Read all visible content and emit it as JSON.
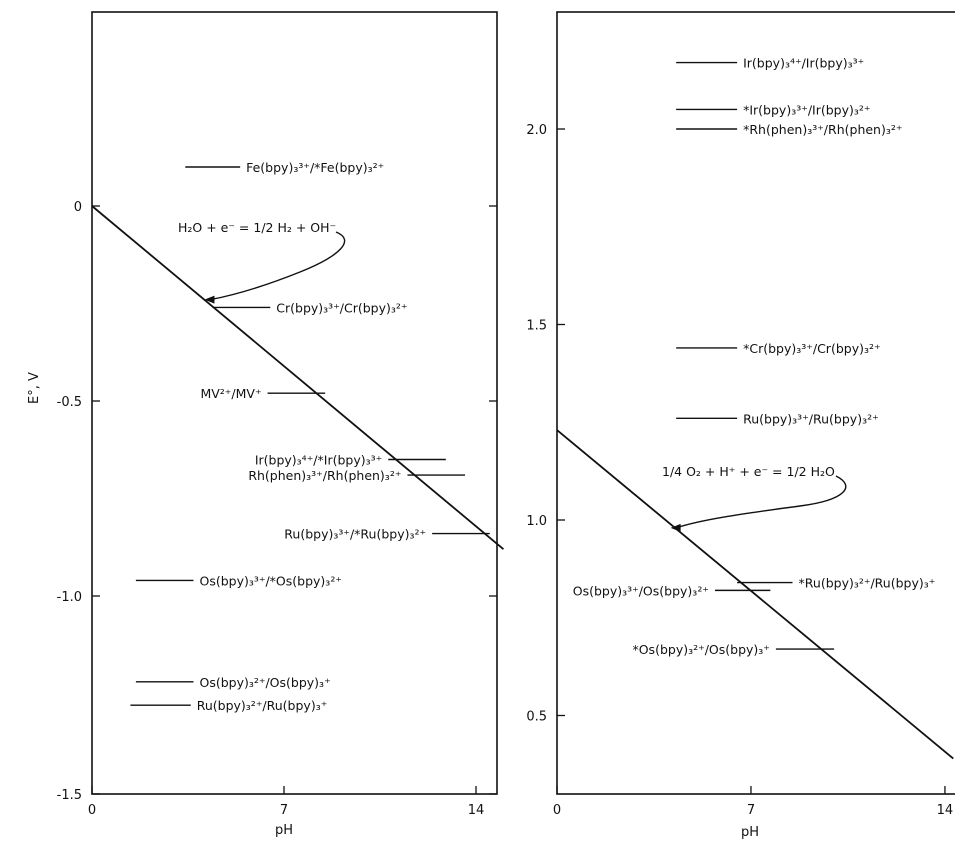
{
  "chart_data": [
    {
      "type": "line",
      "panel": "left",
      "xlabel": "pH",
      "ylabel": "E°, V",
      "xlim": [
        0,
        15
      ],
      "ylim": [
        -1.5,
        0.5
      ],
      "y_inverted": true,
      "grid": false,
      "x_ticks": [
        0,
        7,
        14
      ],
      "x_tick_labels": [
        "0",
        "7",
        "14"
      ],
      "y_ticks": [
        0,
        -0.5,
        -1.0,
        -1.5
      ],
      "y_tick_labels": [
        "0",
        "-0.5",
        "-1.0",
        "-1.5"
      ],
      "reference_line": {
        "x": [
          0,
          15
        ],
        "y": [
          0,
          -0.88
        ]
      },
      "reference_annotation": {
        "label": "H₂O + e⁻ = 1/2 H₂ + OH⁻",
        "points_to": {
          "x": 4.1,
          "y": -0.24
        }
      },
      "couples": [
        {
          "label": "Fe(bpy)₃³⁺/*Fe(bpy)₃²⁺",
          "E": 0.1,
          "x_start": 3.4,
          "x_end": 5.4,
          "label_side": "right"
        },
        {
          "label": "Cr(bpy)₃³⁺/Cr(bpy)₃²⁺",
          "E": -0.26,
          "x_start": 4.4,
          "x_end": 6.5,
          "label_side": "right"
        },
        {
          "label": "MV²⁺/MV⁺",
          "E": -0.48,
          "x_start": 6.4,
          "x_end": 8.5,
          "label_side": "left"
        },
        {
          "label": "Ir(bpy)₃⁴⁺/*Ir(bpy)₃³⁺",
          "E": -0.65,
          "x_start": 10.8,
          "x_end": 12.9,
          "label_side": "left"
        },
        {
          "label": "Rh(phen)₃³⁺/Rh(phen)₃²⁺",
          "E": -0.69,
          "x_start": 11.5,
          "x_end": 13.6,
          "label_side": "left"
        },
        {
          "label": "Ru(bpy)₃³⁺/*Ru(bpy)₃²⁺",
          "E": -0.84,
          "x_start": 12.4,
          "x_end": 14.5,
          "label_side": "left"
        },
        {
          "label": "Os(bpy)₃³⁺/*Os(bpy)₃²⁺",
          "E": -0.96,
          "x_start": 1.6,
          "x_end": 3.7,
          "label_side": "right"
        },
        {
          "label": "Os(bpy)₃²⁺/Os(bpy)₃⁺",
          "E": -1.22,
          "x_start": 1.6,
          "x_end": 3.7,
          "label_side": "right"
        },
        {
          "label": "Ru(bpy)₃²⁺/Ru(bpy)₃⁺",
          "E": -1.28,
          "x_start": 1.4,
          "x_end": 3.6,
          "label_side": "right"
        }
      ]
    },
    {
      "type": "line",
      "panel": "right",
      "xlabel": "pH",
      "ylabel": "",
      "xlim": [
        0,
        14.3
      ],
      "ylim": [
        0.3,
        2.3
      ],
      "grid": false,
      "x_ticks": [
        0,
        7,
        14
      ],
      "x_tick_labels": [
        "0",
        "7",
        "14"
      ],
      "y_ticks": [
        2.0,
        1.5,
        1.0,
        0.5
      ],
      "y_tick_labels": [
        "2.0",
        "1.5",
        "1.0",
        "0.5"
      ],
      "reference_line": {
        "x": [
          0,
          14.3
        ],
        "y": [
          1.23,
          0.39
        ]
      },
      "reference_annotation": {
        "label": "1/4 O₂ + H⁺ + e⁻ = 1/2 H₂O",
        "points_to": {
          "x": 4.1,
          "y": 0.98
        }
      },
      "couples": [
        {
          "label": "Ir(bpy)₃⁴⁺/Ir(bpy)₃³⁺",
          "E": 2.17,
          "x_start": 4.3,
          "x_end": 6.5,
          "label_side": "right"
        },
        {
          "label": "*Ir(bpy)₃³⁺/Ir(bpy)₃²⁺",
          "E": 2.05,
          "x_start": 4.3,
          "x_end": 6.5,
          "label_side": "right"
        },
        {
          "label": "*Rh(phen)₃³⁺/Rh(phen)₃²⁺",
          "E": 2.0,
          "x_start": 4.3,
          "x_end": 6.5,
          "label_side": "right"
        },
        {
          "label": "*Cr(bpy)₃³⁺/Cr(bpy)₃²⁺",
          "E": 1.44,
          "x_start": 4.3,
          "x_end": 6.5,
          "label_side": "right"
        },
        {
          "label": "Ru(bpy)₃³⁺/Ru(bpy)₃²⁺",
          "E": 1.26,
          "x_start": 4.3,
          "x_end": 6.5,
          "label_side": "right"
        },
        {
          "label": "*Ru(bpy)₃²⁺/Ru(bpy)₃⁺",
          "E": 0.84,
          "x_start": 6.5,
          "x_end": 8.5,
          "label_side": "right"
        },
        {
          "label": "Os(bpy)₃³⁺/Os(bpy)₃²⁺",
          "E": 0.82,
          "x_start": 5.7,
          "x_end": 7.7,
          "label_side": "left"
        },
        {
          "label": "*Os(bpy)₃²⁺/Os(bpy)₃⁺",
          "E": 0.67,
          "x_start": 7.9,
          "x_end": 10,
          "label_side": "left"
        }
      ]
    }
  ]
}
